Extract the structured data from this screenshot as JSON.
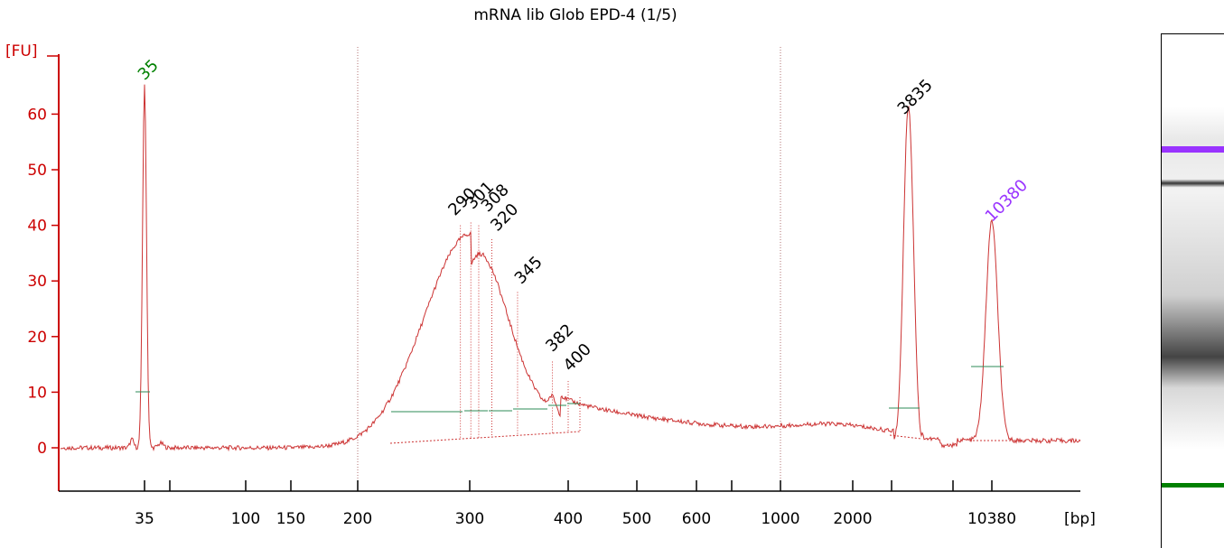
{
  "chart_data": {
    "type": "line",
    "title": "mRNA lib Glob EPD-4 (1/5)",
    "ylabel": "[FU]",
    "xlabel": "[bp]",
    "ylim": [
      -7,
      70
    ],
    "yticks": [
      0,
      10,
      20,
      30,
      40,
      50,
      60
    ],
    "xticks": [
      {
        "label": "35",
        "labeled": true
      },
      {
        "label": "",
        "labeled": false
      },
      {
        "label": "100",
        "labeled": true
      },
      {
        "label": "150",
        "labeled": true
      },
      {
        "label": "200",
        "labeled": true
      },
      {
        "label": "300",
        "labeled": true
      },
      {
        "label": "400",
        "labeled": true
      },
      {
        "label": "500",
        "labeled": true
      },
      {
        "label": "600",
        "labeled": true
      },
      {
        "label": "",
        "labeled": false
      },
      {
        "label": "1000",
        "labeled": true
      },
      {
        "label": "2000",
        "labeled": true
      },
      {
        "label": "",
        "labeled": false
      },
      {
        "label": "",
        "labeled": false
      },
      {
        "label": "10380",
        "labeled": true
      }
    ],
    "peaks": [
      {
        "label": "35",
        "bp": 35,
        "fu": 65,
        "color": "#008000"
      },
      {
        "label": "290",
        "bp": 290,
        "fu": 40,
        "color": "#000000"
      },
      {
        "label": "301",
        "bp": 301,
        "fu": 40.5,
        "color": "#000000"
      },
      {
        "label": "308",
        "bp": 308,
        "fu": 40,
        "color": "#000000"
      },
      {
        "label": "320",
        "bp": 320,
        "fu": 37.5,
        "color": "#000000"
      },
      {
        "label": "345",
        "bp": 345,
        "fu": 28,
        "color": "#000000"
      },
      {
        "label": "382",
        "bp": 382,
        "fu": 15.5,
        "color": "#000000"
      },
      {
        "label": "400",
        "bp": 400,
        "fu": 12,
        "color": "#000000"
      },
      {
        "label": "3835",
        "bp": 3835,
        "fu": 58.5,
        "color": "#000000"
      },
      {
        "label": "10380",
        "bp": 10380,
        "fu": 39.5,
        "color": "#9933ff"
      }
    ],
    "grid": "vertical dotted at 200 and 1000 bp",
    "colors": {
      "axis": "#cc0000",
      "trace": "#cc3333",
      "baseline": "#2e8b57",
      "marker_lower": "#008000",
      "marker_upper": "#9933ff"
    }
  },
  "gel": {
    "bands": [
      {
        "name": "upper-marker",
        "color": "#9933ff"
      },
      {
        "name": "high-band",
        "color": "#333333"
      },
      {
        "name": "smear",
        "color": "#444444"
      },
      {
        "name": "lower-marker",
        "color": "#008000"
      }
    ]
  }
}
